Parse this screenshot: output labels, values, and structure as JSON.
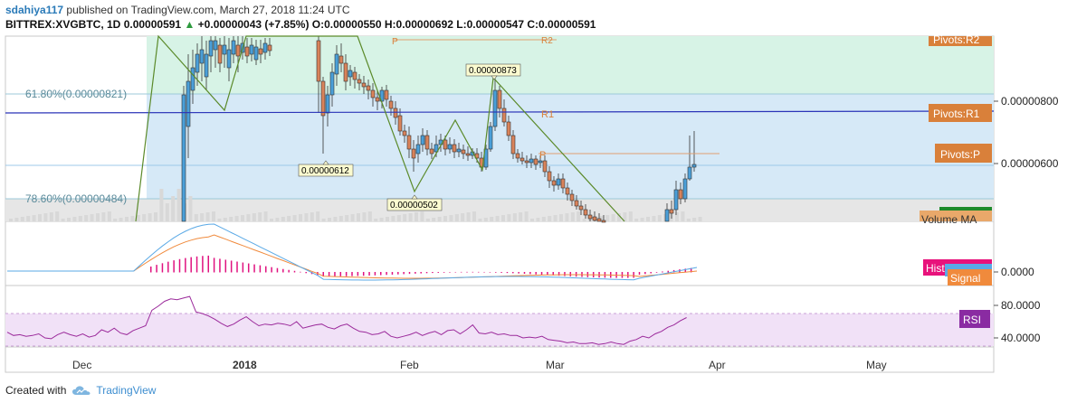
{
  "header": {
    "author": "sdahiya117",
    "published_text": "published on TradingView.com, March 27, 2018 11:24 UTC",
    "symbol": "BITTREX:XVGBTC, 1D",
    "last": "0.00000591",
    "change": "+0.00000043 (+7.85%)",
    "o_label": "O:",
    "o": "0.00000550",
    "h_label": "H:",
    "h": "0.00000692",
    "l_label": "L:",
    "l": "0.00000547",
    "c_label": "C:",
    "c": "0.00000591"
  },
  "footer": {
    "created_with": "Created with",
    "brand": "TradingView"
  },
  "colors": {
    "up": "#4a9fd8",
    "down": "#d9835a",
    "fib_green": "#d7f3e6",
    "fib_blue": "#d6e9f7",
    "fib_gray": "#e6e6e6",
    "resistance_line": "#2b34b8",
    "trendline": "#5b8a2a",
    "macd": "#5aa9e6",
    "signal": "#f08a3c",
    "hist": "#e0117f",
    "rsi": "#9b2a9b",
    "pivot_label_bg": "#d9803a",
    "hist_label_bg": "#e8127b",
    "rsi_label_bg": "#8a2ba2"
  },
  "chart_data": {
    "type": "candlestick",
    "xaxis_labels": [
      "Dec",
      "2018",
      "Feb",
      "Mar",
      "Apr",
      "May"
    ],
    "price_axis": {
      "ticks": [
        "0.00000800",
        "0.00000600"
      ],
      "tick_values": [
        8e-06,
        6e-06
      ],
      "range": [
        4.2e-06,
        1.04e-05
      ]
    },
    "fib_levels": [
      {
        "label": "61.80%(0.00000821)",
        "value": 8.21e-06
      },
      {
        "label": "78.60%(0.00000484)",
        "value": 4.84e-06
      }
    ],
    "pivots": [
      {
        "label": "Pivots:R2",
        "short": "R2"
      },
      {
        "label": "Pivots:R1",
        "short": "R1",
        "value": 7.7e-06
      },
      {
        "label": "Pivots:P",
        "short": "P",
        "value": 6.32e-06
      }
    ],
    "swing_labels": [
      {
        "text": "0.00000873",
        "value": 8.73e-06
      },
      {
        "text": "0.00000612",
        "value": 6.12e-06
      },
      {
        "text": "0.00000502",
        "value": 5.02e-06
      }
    ],
    "volume_label": "Volume MA",
    "macd": {
      "axis_tick": "0.0000",
      "hist_label": "Histogram",
      "signal_label": "Signal"
    },
    "rsi": {
      "label": "RSI",
      "ticks": [
        "80.0000",
        "40.0000"
      ],
      "tick_values": [
        80,
        40
      ],
      "band": [
        30,
        70
      ],
      "values": [
        47,
        43,
        44,
        42,
        43,
        45,
        40,
        39,
        44,
        47,
        44,
        42,
        45,
        41,
        43,
        50,
        47,
        52,
        46,
        44,
        49,
        52,
        55,
        74,
        79,
        85,
        88,
        87,
        89,
        91,
        72,
        70,
        67,
        63,
        58,
        54,
        57,
        62,
        66,
        60,
        55,
        57,
        56,
        58,
        57,
        55,
        60,
        52,
        54,
        56,
        57,
        53,
        51,
        55,
        57,
        52,
        48,
        47,
        44,
        45,
        48,
        42,
        40,
        42,
        44,
        47,
        43,
        46,
        48,
        44,
        49,
        50,
        45,
        50,
        56,
        46,
        45,
        47,
        44,
        45,
        43,
        43,
        40,
        41,
        40,
        42,
        38,
        37,
        36,
        34,
        35,
        33,
        33,
        34,
        32,
        33,
        35,
        33,
        32,
        36,
        38,
        42,
        40,
        45,
        48,
        53,
        56,
        61,
        65
      ]
    }
  }
}
